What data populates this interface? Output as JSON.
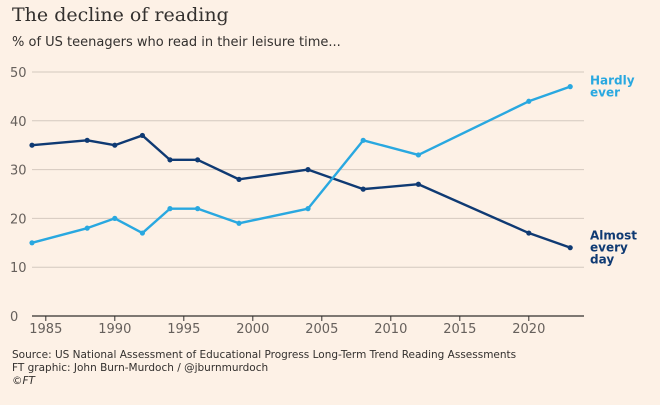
{
  "title": "The decline of reading",
  "subtitle": "% of US teenagers who read in their leisure time...",
  "footer": {
    "source": "Source: US National Assessment of Educational Progress Long-Term Trend Reading Assessments",
    "credit": "FT graphic: John Burn-Murdoch / @jburnmurdoch",
    "copyright": "©FT"
  },
  "colors": {
    "background": "#fdf1e6",
    "almost_every_day": "#0f3a73",
    "hardly_ever": "#29a8e0",
    "grid": "#d4c9bf",
    "axis": "#33302e"
  },
  "chart_data": {
    "type": "line",
    "ylim": [
      0,
      50
    ],
    "xlim": [
      1984,
      2024
    ],
    "y_ticks": [
      0,
      10,
      20,
      30,
      40,
      50
    ],
    "x_ticks": [
      1985,
      1990,
      1995,
      2000,
      2005,
      2010,
      2015,
      2020
    ],
    "grid": true,
    "series": [
      {
        "key": "almost_every_day",
        "label_lines": [
          "Almost",
          "every",
          "day"
        ],
        "x": [
          1984,
          1988,
          1990,
          1992,
          1994,
          1996,
          1999,
          2004,
          2008,
          2012,
          2020,
          2023
        ],
        "values": [
          35,
          36,
          35,
          37,
          32,
          32,
          28,
          30,
          26,
          27,
          17,
          14
        ]
      },
      {
        "key": "hardly_ever",
        "label_lines": [
          "Hardly",
          "ever"
        ],
        "x": [
          1984,
          1988,
          1990,
          1992,
          1994,
          1996,
          1999,
          2004,
          2008,
          2012,
          2020,
          2023
        ],
        "values": [
          15,
          18,
          20,
          17,
          22,
          22,
          19,
          22,
          36,
          33,
          44,
          47
        ]
      }
    ]
  }
}
